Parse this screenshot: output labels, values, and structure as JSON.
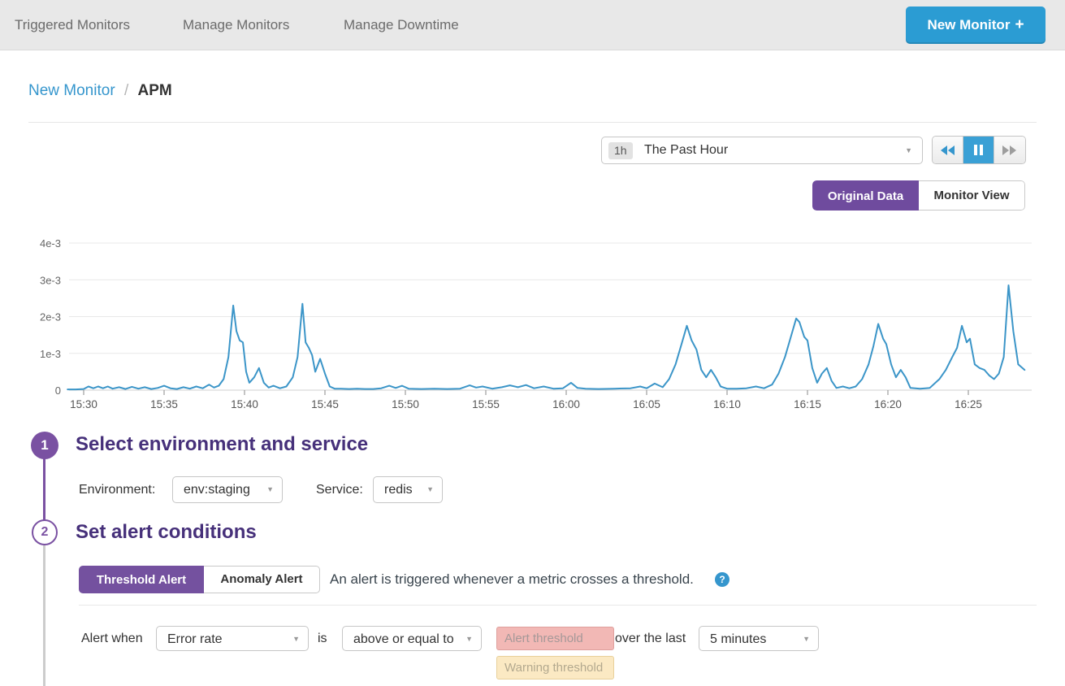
{
  "nav": {
    "items": [
      "Triggered Monitors",
      "Manage Monitors",
      "Manage Downtime"
    ],
    "new_monitor_label": "New Monitor"
  },
  "breadcrumb": {
    "parent": "New Monitor",
    "separator": "/",
    "current": "APM"
  },
  "timebar": {
    "range_badge": "1h",
    "range_label": "The Past Hour"
  },
  "view_toggle": {
    "original": "Original Data",
    "monitor": "Monitor View"
  },
  "icons": {
    "caret": "▼",
    "plus": "+",
    "question": "?"
  },
  "colors": {
    "accent_blue": "#2b9cd3",
    "purple": "#74519f",
    "heading_purple": "#46307a",
    "chart_line": "#3b95c8",
    "alert_threshold_bg": "#f2b8b5",
    "warning_threshold_bg": "#fbe9c3",
    "nav_bg": "#e8e8e8"
  },
  "chart_data": {
    "type": "line",
    "title": "",
    "xlabel": "",
    "ylabel": "",
    "grid": "horizontal",
    "legend": "none",
    "xlim_minutes": [
      -1,
      59
    ],
    "ylim": [
      0,
      0.0043
    ],
    "y_ticks": {
      "values": [
        0,
        1,
        2,
        3,
        4
      ],
      "labels": [
        "0",
        "1e-3",
        "2e-3",
        "3e-3",
        "4e-3"
      ],
      "unit": "1e-3"
    },
    "x_ticks": {
      "minutes": [
        0,
        5,
        10,
        15,
        20,
        25,
        30,
        35,
        40,
        45,
        50,
        55
      ],
      "labels": [
        "15:30",
        "15:35",
        "15:40",
        "15:45",
        "15:50",
        "15:55",
        "16:00",
        "16:05",
        "16:10",
        "16:15",
        "16:20",
        "16:25"
      ]
    },
    "series": [
      {
        "name": "Error rate",
        "color": "#3b95c8",
        "points_unit": "[minutes after 15:30, value in 1e-3]",
        "points": [
          [
            -1,
            0.02
          ],
          [
            -0.5,
            0.02
          ],
          [
            0,
            0.03
          ],
          [
            0.3,
            0.1
          ],
          [
            0.6,
            0.05
          ],
          [
            0.9,
            0.1
          ],
          [
            1.2,
            0.05
          ],
          [
            1.5,
            0.1
          ],
          [
            1.8,
            0.04
          ],
          [
            2.2,
            0.08
          ],
          [
            2.6,
            0.03
          ],
          [
            3,
            0.09
          ],
          [
            3.4,
            0.04
          ],
          [
            3.8,
            0.08
          ],
          [
            4.2,
            0.03
          ],
          [
            4.6,
            0.06
          ],
          [
            5,
            0.12
          ],
          [
            5.4,
            0.05
          ],
          [
            5.8,
            0.03
          ],
          [
            6.2,
            0.08
          ],
          [
            6.6,
            0.04
          ],
          [
            7,
            0.1
          ],
          [
            7.4,
            0.05
          ],
          [
            7.8,
            0.15
          ],
          [
            8.1,
            0.07
          ],
          [
            8.4,
            0.12
          ],
          [
            8.7,
            0.3
          ],
          [
            9,
            0.9
          ],
          [
            9.3,
            2.3
          ],
          [
            9.5,
            1.6
          ],
          [
            9.7,
            1.35
          ],
          [
            9.9,
            1.3
          ],
          [
            10.1,
            0.5
          ],
          [
            10.3,
            0.2
          ],
          [
            10.6,
            0.35
          ],
          [
            10.9,
            0.6
          ],
          [
            11.2,
            0.2
          ],
          [
            11.5,
            0.07
          ],
          [
            11.8,
            0.12
          ],
          [
            12.2,
            0.05
          ],
          [
            12.6,
            0.1
          ],
          [
            13,
            0.35
          ],
          [
            13.3,
            0.9
          ],
          [
            13.6,
            2.35
          ],
          [
            13.8,
            1.3
          ],
          [
            14,
            1.15
          ],
          [
            14.2,
            0.95
          ],
          [
            14.4,
            0.5
          ],
          [
            14.7,
            0.85
          ],
          [
            15,
            0.45
          ],
          [
            15.3,
            0.1
          ],
          [
            15.6,
            0.04
          ],
          [
            16,
            0.04
          ],
          [
            16.5,
            0.03
          ],
          [
            17,
            0.04
          ],
          [
            17.5,
            0.03
          ],
          [
            18,
            0.03
          ],
          [
            18.5,
            0.05
          ],
          [
            19,
            0.12
          ],
          [
            19.4,
            0.06
          ],
          [
            19.8,
            0.12
          ],
          [
            20.2,
            0.04
          ],
          [
            21,
            0.03
          ],
          [
            21.8,
            0.04
          ],
          [
            22.6,
            0.03
          ],
          [
            23.4,
            0.04
          ],
          [
            24,
            0.13
          ],
          [
            24.4,
            0.07
          ],
          [
            24.8,
            0.1
          ],
          [
            25.4,
            0.04
          ],
          [
            26,
            0.08
          ],
          [
            26.5,
            0.13
          ],
          [
            27,
            0.08
          ],
          [
            27.5,
            0.14
          ],
          [
            28,
            0.05
          ],
          [
            28.6,
            0.1
          ],
          [
            29.2,
            0.04
          ],
          [
            29.8,
            0.05
          ],
          [
            30.3,
            0.2
          ],
          [
            30.7,
            0.06
          ],
          [
            31.2,
            0.04
          ],
          [
            32,
            0.03
          ],
          [
            33,
            0.04
          ],
          [
            34,
            0.05
          ],
          [
            34.6,
            0.1
          ],
          [
            35,
            0.05
          ],
          [
            35.5,
            0.18
          ],
          [
            36,
            0.08
          ],
          [
            36.4,
            0.3
          ],
          [
            36.8,
            0.7
          ],
          [
            37.2,
            1.3
          ],
          [
            37.5,
            1.75
          ],
          [
            37.8,
            1.35
          ],
          [
            38.1,
            1.1
          ],
          [
            38.4,
            0.55
          ],
          [
            38.7,
            0.35
          ],
          [
            39,
            0.55
          ],
          [
            39.3,
            0.35
          ],
          [
            39.6,
            0.1
          ],
          [
            40,
            0.04
          ],
          [
            40.6,
            0.04
          ],
          [
            41.2,
            0.05
          ],
          [
            41.8,
            0.1
          ],
          [
            42.3,
            0.05
          ],
          [
            42.8,
            0.15
          ],
          [
            43.2,
            0.45
          ],
          [
            43.6,
            0.9
          ],
          [
            44,
            1.5
          ],
          [
            44.3,
            1.95
          ],
          [
            44.5,
            1.85
          ],
          [
            44.8,
            1.45
          ],
          [
            45,
            1.35
          ],
          [
            45.3,
            0.6
          ],
          [
            45.6,
            0.2
          ],
          [
            45.9,
            0.45
          ],
          [
            46.2,
            0.6
          ],
          [
            46.5,
            0.25
          ],
          [
            46.8,
            0.06
          ],
          [
            47.2,
            0.1
          ],
          [
            47.6,
            0.05
          ],
          [
            48,
            0.1
          ],
          [
            48.4,
            0.3
          ],
          [
            48.8,
            0.7
          ],
          [
            49.1,
            1.2
          ],
          [
            49.4,
            1.8
          ],
          [
            49.7,
            1.4
          ],
          [
            49.9,
            1.25
          ],
          [
            50.2,
            0.7
          ],
          [
            50.5,
            0.35
          ],
          [
            50.8,
            0.55
          ],
          [
            51.1,
            0.35
          ],
          [
            51.4,
            0.06
          ],
          [
            52,
            0.04
          ],
          [
            52.6,
            0.06
          ],
          [
            53.2,
            0.3
          ],
          [
            53.6,
            0.55
          ],
          [
            54,
            0.9
          ],
          [
            54.3,
            1.15
          ],
          [
            54.6,
            1.75
          ],
          [
            54.9,
            1.3
          ],
          [
            55.1,
            1.4
          ],
          [
            55.4,
            0.7
          ],
          [
            55.7,
            0.6
          ],
          [
            56,
            0.55
          ],
          [
            56.3,
            0.4
          ],
          [
            56.6,
            0.3
          ],
          [
            56.9,
            0.45
          ],
          [
            57.2,
            0.9
          ],
          [
            57.5,
            2.85
          ],
          [
            57.8,
            1.6
          ],
          [
            58.1,
            0.7
          ],
          [
            58.5,
            0.55
          ]
        ]
      }
    ]
  },
  "step1": {
    "number": "1",
    "title": "Select environment and service",
    "environment_label": "Environment:",
    "environment_value": "env:staging",
    "service_label": "Service:",
    "service_value": "redis"
  },
  "step2": {
    "number": "2",
    "title": "Set alert conditions",
    "threshold_tab": "Threshold Alert",
    "anomaly_tab": "Anomaly Alert",
    "description": "An alert is triggered whenever a metric crosses a threshold."
  },
  "alert_row": {
    "prefix": "Alert when",
    "metric": "Error rate",
    "is_label": "is",
    "comparison": "above or equal to",
    "alert_placeholder": "Alert threshold",
    "suffix": "over the last",
    "window": "5 minutes",
    "warning_placeholder": "Warning threshold"
  }
}
